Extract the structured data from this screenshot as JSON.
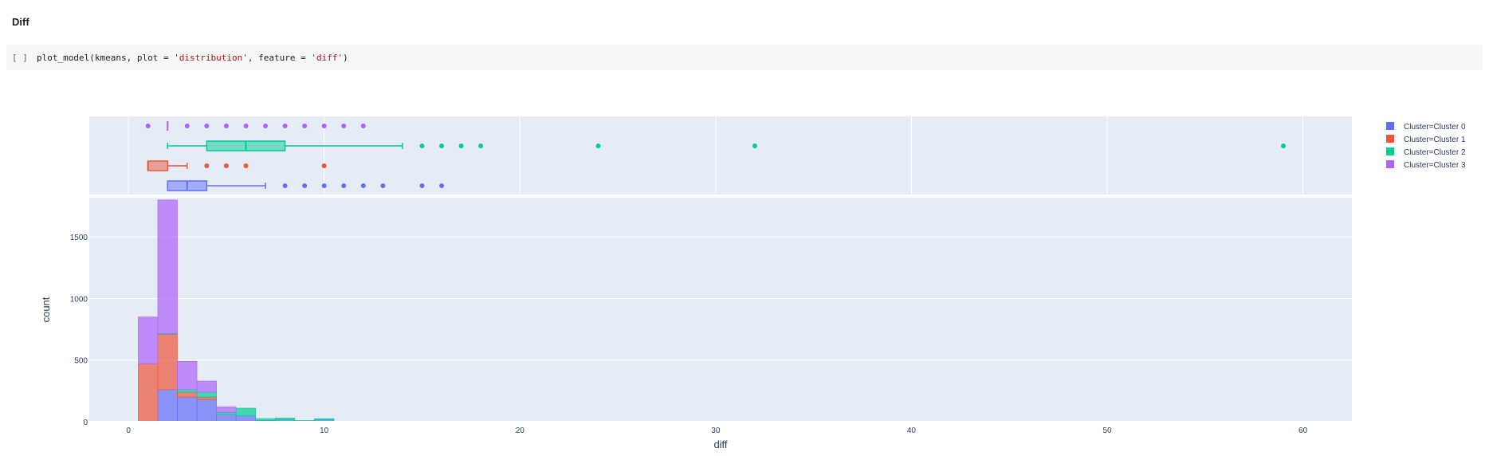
{
  "section": {
    "title": "Diff"
  },
  "cell": {
    "prompt": "[ ]",
    "code_parts": [
      {
        "text": "plot_model(kmeans, plot = ",
        "cls": ""
      },
      {
        "text": "'distribution'",
        "cls": "str"
      },
      {
        "text": ", feature = ",
        "cls": ""
      },
      {
        "text": "'diff'",
        "cls": "str"
      },
      {
        "text": ")",
        "cls": ""
      }
    ]
  },
  "chart_data": {
    "type": "bar",
    "barmode": "stack",
    "xlabel": "diff",
    "ylabel": "count",
    "xlim": [
      -2,
      62.5
    ],
    "ylim": [
      0,
      1800
    ],
    "x_ticks": [
      0,
      10,
      20,
      30,
      40,
      50,
      60
    ],
    "y_ticks": [
      0,
      500,
      1000,
      1500
    ],
    "bin_width": 1,
    "bin_starts": [
      0.5,
      1.5,
      2.5,
      3.5,
      4.5,
      5.5,
      6.5,
      7.5,
      8.5,
      9.5
    ],
    "legend_position": "top-right",
    "grid": true,
    "series": [
      {
        "name": "Cluster=Cluster 0",
        "color": "#636efa",
        "values": [
          0,
          260,
          200,
          180,
          60,
          50,
          10,
          15,
          5,
          15
        ],
        "box": {
          "q1": 2,
          "median": 3,
          "q3": 4,
          "whisker_low": 2,
          "whisker_high": 7,
          "outliers": [
            8,
            9,
            10,
            11,
            12,
            13,
            15,
            16
          ]
        }
      },
      {
        "name": "Cluster=Cluster 1",
        "color": "#ef553b",
        "values": [
          470,
          450,
          40,
          20,
          0,
          0,
          0,
          0,
          0,
          0
        ],
        "box": {
          "q1": 1,
          "median": 1,
          "q3": 2,
          "whisker_low": 1,
          "whisker_high": 3,
          "outliers": [
            4,
            5,
            6,
            10
          ]
        }
      },
      {
        "name": "Cluster=Cluster 2",
        "color": "#00cc96",
        "values": [
          0,
          5,
          20,
          40,
          15,
          60,
          15,
          15,
          5,
          10
        ],
        "box": {
          "q1": 4,
          "median": 6,
          "q3": 8,
          "whisker_low": 2,
          "whisker_high": 14,
          "outliers": [
            15,
            16,
            17,
            18,
            24,
            32,
            59
          ]
        }
      },
      {
        "name": "Cluster=Cluster 3",
        "color": "#ab63fa",
        "values": [
          380,
          1085,
          230,
          90,
          45,
          0,
          0,
          0,
          0,
          0
        ],
        "box": {
          "q1": 2,
          "median": 2,
          "q3": 2,
          "whisker_low": 2,
          "whisker_high": 2,
          "outliers": [
            1,
            3,
            4,
            5,
            6,
            7,
            8,
            9,
            10,
            11,
            12
          ]
        }
      }
    ]
  }
}
